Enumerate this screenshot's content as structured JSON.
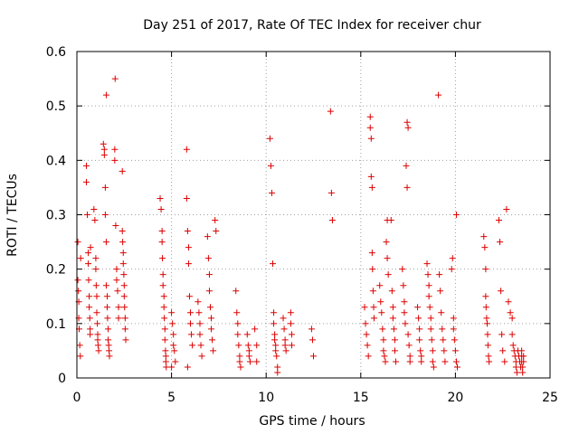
{
  "chart_data": {
    "type": "scatter",
    "title": "Day 251 of 2017, Rate Of TEC Index for receiver chur",
    "xlabel": "GPS time / hours",
    "ylabel": "ROTI / TECUs",
    "xlim": [
      0,
      25
    ],
    "ylim": [
      0,
      0.6
    ],
    "xticks": [
      "0",
      "5",
      "10",
      "15",
      "20",
      "25"
    ],
    "yticks": [
      "0",
      "0.1",
      "0.2",
      "0.3",
      "0.4",
      "0.5",
      "0.6"
    ],
    "xtick_values": [
      0,
      5,
      10,
      15,
      20,
      25
    ],
    "ytick_values": [
      0,
      0.1,
      0.2,
      0.3,
      0.4,
      0.5,
      0.6
    ],
    "grid": true,
    "marker": "+",
    "color": "#dd0000",
    "points": [
      [
        0.05,
        0.25
      ],
      [
        0.05,
        0.18
      ],
      [
        0.08,
        0.16
      ],
      [
        0.1,
        0.14
      ],
      [
        0.1,
        0.11
      ],
      [
        0.12,
        0.09
      ],
      [
        0.15,
        0.06
      ],
      [
        0.18,
        0.04
      ],
      [
        0.2,
        0.22
      ],
      [
        0.5,
        0.39
      ],
      [
        0.5,
        0.36
      ],
      [
        0.55,
        0.3
      ],
      [
        0.6,
        0.23
      ],
      [
        0.6,
        0.21
      ],
      [
        0.62,
        0.18
      ],
      [
        0.65,
        0.15
      ],
      [
        0.65,
        0.13
      ],
      [
        0.68,
        0.11
      ],
      [
        0.7,
        0.09
      ],
      [
        0.7,
        0.08
      ],
      [
        0.72,
        0.24
      ],
      [
        0.9,
        0.31
      ],
      [
        0.95,
        0.29
      ],
      [
        1.0,
        0.22
      ],
      [
        1.0,
        0.2
      ],
      [
        1.02,
        0.17
      ],
      [
        1.05,
        0.15
      ],
      [
        1.05,
        0.12
      ],
      [
        1.08,
        0.1
      ],
      [
        1.1,
        0.08
      ],
      [
        1.1,
        0.07
      ],
      [
        1.12,
        0.06
      ],
      [
        1.15,
        0.05
      ],
      [
        1.4,
        0.43
      ],
      [
        1.45,
        0.42
      ],
      [
        1.45,
        0.41
      ],
      [
        1.5,
        0.35
      ],
      [
        1.5,
        0.3
      ],
      [
        1.55,
        0.25
      ],
      [
        1.55,
        0.17
      ],
      [
        1.6,
        0.15
      ],
      [
        1.6,
        0.13
      ],
      [
        1.62,
        0.11
      ],
      [
        1.65,
        0.09
      ],
      [
        1.65,
        0.07
      ],
      [
        1.68,
        0.06
      ],
      [
        1.7,
        0.05
      ],
      [
        1.72,
        0.04
      ],
      [
        1.55,
        0.52
      ],
      [
        2.0,
        0.42
      ],
      [
        2.0,
        0.4
      ],
      [
        2.05,
        0.28
      ],
      [
        2.1,
        0.2
      ],
      [
        2.1,
        0.18
      ],
      [
        2.15,
        0.16
      ],
      [
        2.2,
        0.13
      ],
      [
        2.2,
        0.11
      ],
      [
        2.02,
        0.55
      ],
      [
        2.4,
        0.38
      ],
      [
        2.4,
        0.27
      ],
      [
        2.42,
        0.25
      ],
      [
        2.45,
        0.23
      ],
      [
        2.45,
        0.21
      ],
      [
        2.48,
        0.19
      ],
      [
        2.5,
        0.17
      ],
      [
        2.5,
        0.15
      ],
      [
        2.52,
        0.13
      ],
      [
        2.55,
        0.11
      ],
      [
        2.55,
        0.09
      ],
      [
        2.58,
        0.07
      ],
      [
        4.4,
        0.33
      ],
      [
        4.45,
        0.31
      ],
      [
        4.5,
        0.27
      ],
      [
        4.5,
        0.25
      ],
      [
        4.52,
        0.22
      ],
      [
        4.55,
        0.19
      ],
      [
        4.55,
        0.17
      ],
      [
        4.6,
        0.15
      ],
      [
        4.6,
        0.13
      ],
      [
        4.62,
        0.11
      ],
      [
        4.65,
        0.09
      ],
      [
        4.65,
        0.07
      ],
      [
        4.68,
        0.05
      ],
      [
        4.7,
        0.04
      ],
      [
        4.7,
        0.03
      ],
      [
        4.72,
        0.02
      ],
      [
        5.0,
        0.12
      ],
      [
        5.05,
        0.1
      ],
      [
        5.1,
        0.08
      ],
      [
        5.1,
        0.06
      ],
      [
        5.15,
        0.05
      ],
      [
        5.2,
        0.03
      ],
      [
        5.0,
        0.02
      ],
      [
        5.8,
        0.42
      ],
      [
        5.8,
        0.33
      ],
      [
        5.85,
        0.27
      ],
      [
        5.9,
        0.24
      ],
      [
        5.9,
        0.21
      ],
      [
        5.95,
        0.15
      ],
      [
        6.0,
        0.12
      ],
      [
        6.0,
        0.1
      ],
      [
        6.05,
        0.08
      ],
      [
        6.1,
        0.06
      ],
      [
        5.85,
        0.02
      ],
      [
        6.4,
        0.14
      ],
      [
        6.45,
        0.12
      ],
      [
        6.5,
        0.1
      ],
      [
        6.5,
        0.08
      ],
      [
        6.55,
        0.06
      ],
      [
        6.6,
        0.04
      ],
      [
        6.9,
        0.26
      ],
      [
        6.95,
        0.22
      ],
      [
        7.0,
        0.19
      ],
      [
        7.0,
        0.16
      ],
      [
        7.05,
        0.13
      ],
      [
        7.1,
        0.11
      ],
      [
        7.1,
        0.09
      ],
      [
        7.15,
        0.07
      ],
      [
        7.2,
        0.05
      ],
      [
        7.3,
        0.29
      ],
      [
        7.35,
        0.27
      ],
      [
        8.4,
        0.16
      ],
      [
        8.45,
        0.12
      ],
      [
        8.5,
        0.1
      ],
      [
        8.5,
        0.08
      ],
      [
        8.55,
        0.06
      ],
      [
        8.6,
        0.04
      ],
      [
        8.6,
        0.03
      ],
      [
        8.65,
        0.02
      ],
      [
        9.0,
        0.08
      ],
      [
        9.05,
        0.06
      ],
      [
        9.1,
        0.05
      ],
      [
        9.1,
        0.04
      ],
      [
        9.15,
        0.03
      ],
      [
        9.4,
        0.09
      ],
      [
        9.5,
        0.06
      ],
      [
        9.5,
        0.03
      ],
      [
        10.2,
        0.44
      ],
      [
        10.25,
        0.39
      ],
      [
        10.3,
        0.34
      ],
      [
        10.35,
        0.21
      ],
      [
        10.4,
        0.12
      ],
      [
        10.4,
        0.1
      ],
      [
        10.45,
        0.08
      ],
      [
        10.45,
        0.07
      ],
      [
        10.5,
        0.06
      ],
      [
        10.5,
        0.05
      ],
      [
        10.55,
        0.04
      ],
      [
        10.6,
        0.02
      ],
      [
        10.6,
        0.01
      ],
      [
        10.9,
        0.11
      ],
      [
        10.95,
        0.09
      ],
      [
        11.0,
        0.07
      ],
      [
        11.0,
        0.06
      ],
      [
        11.05,
        0.05
      ],
      [
        11.3,
        0.12
      ],
      [
        11.3,
        0.1
      ],
      [
        11.35,
        0.08
      ],
      [
        11.35,
        0.06
      ],
      [
        12.4,
        0.09
      ],
      [
        12.45,
        0.07
      ],
      [
        12.5,
        0.04
      ],
      [
        13.4,
        0.49
      ],
      [
        13.45,
        0.34
      ],
      [
        13.5,
        0.29
      ],
      [
        15.2,
        0.13
      ],
      [
        15.25,
        0.1
      ],
      [
        15.3,
        0.08
      ],
      [
        15.35,
        0.06
      ],
      [
        15.4,
        0.04
      ],
      [
        15.5,
        0.48
      ],
      [
        15.5,
        0.46
      ],
      [
        15.55,
        0.44
      ],
      [
        15.55,
        0.37
      ],
      [
        15.6,
        0.35
      ],
      [
        15.6,
        0.23
      ],
      [
        15.62,
        0.2
      ],
      [
        15.65,
        0.16
      ],
      [
        15.68,
        0.13
      ],
      [
        15.7,
        0.11
      ],
      [
        16.0,
        0.17
      ],
      [
        16.05,
        0.14
      ],
      [
        16.1,
        0.12
      ],
      [
        16.15,
        0.09
      ],
      [
        16.2,
        0.07
      ],
      [
        16.2,
        0.05
      ],
      [
        16.25,
        0.04
      ],
      [
        16.3,
        0.03
      ],
      [
        16.35,
        0.25
      ],
      [
        16.4,
        0.22
      ],
      [
        16.4,
        0.29
      ],
      [
        16.45,
        0.19
      ],
      [
        16.6,
        0.29
      ],
      [
        16.65,
        0.16
      ],
      [
        16.7,
        0.13
      ],
      [
        16.7,
        0.11
      ],
      [
        16.75,
        0.09
      ],
      [
        16.8,
        0.07
      ],
      [
        16.8,
        0.05
      ],
      [
        16.85,
        0.03
      ],
      [
        17.2,
        0.2
      ],
      [
        17.25,
        0.17
      ],
      [
        17.3,
        0.14
      ],
      [
        17.3,
        0.12
      ],
      [
        17.35,
        0.1
      ],
      [
        17.4,
        0.39
      ],
      [
        17.45,
        0.35
      ],
      [
        17.45,
        0.47
      ],
      [
        17.5,
        0.46
      ],
      [
        17.5,
        0.08
      ],
      [
        17.55,
        0.06
      ],
      [
        17.6,
        0.04
      ],
      [
        17.6,
        0.03
      ],
      [
        18.0,
        0.13
      ],
      [
        18.05,
        0.11
      ],
      [
        18.1,
        0.09
      ],
      [
        18.1,
        0.07
      ],
      [
        18.15,
        0.05
      ],
      [
        18.2,
        0.04
      ],
      [
        18.2,
        0.03
      ],
      [
        18.5,
        0.21
      ],
      [
        18.55,
        0.19
      ],
      [
        18.6,
        0.17
      ],
      [
        18.6,
        0.15
      ],
      [
        18.65,
        0.13
      ],
      [
        18.7,
        0.11
      ],
      [
        18.7,
        0.09
      ],
      [
        18.75,
        0.07
      ],
      [
        18.8,
        0.05
      ],
      [
        18.8,
        0.03
      ],
      [
        18.85,
        0.02
      ],
      [
        19.1,
        0.52
      ],
      [
        19.15,
        0.19
      ],
      [
        19.2,
        0.16
      ],
      [
        19.25,
        0.12
      ],
      [
        19.3,
        0.09
      ],
      [
        19.35,
        0.07
      ],
      [
        19.4,
        0.05
      ],
      [
        19.45,
        0.03
      ],
      [
        19.8,
        0.2
      ],
      [
        19.85,
        0.22
      ],
      [
        19.9,
        0.11
      ],
      [
        19.9,
        0.09
      ],
      [
        19.95,
        0.07
      ],
      [
        20.0,
        0.05
      ],
      [
        20.05,
        0.03
      ],
      [
        20.1,
        0.02
      ],
      [
        20.05,
        0.3
      ],
      [
        21.5,
        0.26
      ],
      [
        21.55,
        0.24
      ],
      [
        21.6,
        0.15
      ],
      [
        21.62,
        0.13
      ],
      [
        21.65,
        0.11
      ],
      [
        21.68,
        0.1
      ],
      [
        21.7,
        0.08
      ],
      [
        21.72,
        0.06
      ],
      [
        21.75,
        0.04
      ],
      [
        21.78,
        0.03
      ],
      [
        21.6,
        0.2
      ],
      [
        22.3,
        0.29
      ],
      [
        22.35,
        0.25
      ],
      [
        22.4,
        0.16
      ],
      [
        22.45,
        0.08
      ],
      [
        22.5,
        0.05
      ],
      [
        22.6,
        0.03
      ],
      [
        22.7,
        0.31
      ],
      [
        22.8,
        0.14
      ],
      [
        22.9,
        0.12
      ],
      [
        23.0,
        0.11
      ],
      [
        23.0,
        0.08
      ],
      [
        23.05,
        0.06
      ],
      [
        23.1,
        0.05
      ],
      [
        23.15,
        0.04
      ],
      [
        23.2,
        0.03
      ],
      [
        23.2,
        0.02
      ],
      [
        23.25,
        0.01
      ],
      [
        23.3,
        0.05
      ],
      [
        23.35,
        0.04
      ],
      [
        23.4,
        0.03
      ],
      [
        23.45,
        0.02
      ],
      [
        23.5,
        0.05
      ],
      [
        23.5,
        0.04
      ],
      [
        23.5,
        0.03
      ],
      [
        23.55,
        0.02
      ],
      [
        23.55,
        0.01
      ],
      [
        23.6,
        0.04
      ],
      [
        23.6,
        0.03
      ]
    ]
  }
}
